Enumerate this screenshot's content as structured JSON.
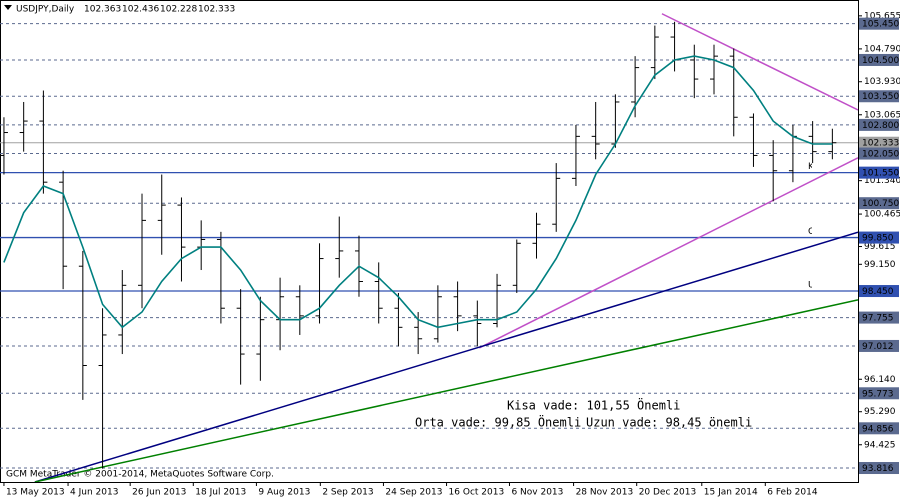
{
  "chart_data": {
    "type": "ohlc",
    "title": "USDJPY,Daily",
    "header_prices": [
      102.363,
      102.436,
      102.228,
      102.333
    ],
    "copyright": "GCM MetaTrader © 2001-2014, MetaQuotes Software Corp.",
    "ylim": [
      93.45,
      106.07
    ],
    "xlim": [
      -0.2,
      43.3
    ],
    "yticks": [
      105.655,
      {
        "value": 104.79,
        "label": "104.790"
      },
      {
        "value": 103.93,
        "label": "103.930"
      },
      103.065,
      {
        "value": 101.34,
        "label": "101.340"
      },
      100.465,
      99.615,
      {
        "value": 99.15,
        "label": "99.150"
      },
      {
        "value": 96.14,
        "label": "96.140"
      },
      {
        "value": 95.29,
        "label": "95.290"
      },
      94.425
    ],
    "xticks": [
      {
        "value": 0,
        "label": "13 May 2013"
      },
      {
        "value": 3.25,
        "label": "4 Jun 2013"
      },
      {
        "value": 6.4,
        "label": "26 Jun 2013"
      },
      {
        "value": 9.6,
        "label": "18 Jul 2013"
      },
      {
        "value": 12.8,
        "label": "9 Aug 2013"
      },
      {
        "value": 16.04,
        "label": "2 Sep 2013"
      },
      {
        "value": 19.24,
        "label": "24 Sep 2013"
      },
      {
        "value": 22.44,
        "label": "16 Oct 2013"
      },
      {
        "value": 25.63,
        "label": "6 Nov 2013"
      },
      {
        "value": 28.88,
        "label": "28 Nov 2013"
      },
      {
        "value": 32.08,
        "label": "20 Dec 2013"
      },
      {
        "value": 35.38,
        "label": "15 Jan 2014"
      },
      {
        "value": 38.6,
        "label": "6 Feb 2014"
      }
    ],
    "color": "#000000",
    "open": [
      102.0,
      102.6,
      102.9,
      101.3,
      99.1,
      96.5,
      97.3,
      98.6,
      100.3,
      100.7,
      99.6,
      99.8,
      98.0,
      96.8,
      97.7,
      98.3,
      97.8,
      99.3,
      99.5,
      98.7,
      98.0,
      97.5,
      97.2,
      98.3,
      97.8,
      97.6,
      98.6,
      99.7,
      100.2,
      101.4,
      102.5,
      102.3,
      103.4,
      104.3,
      105.1,
      104.5,
      104.0,
      104.6,
      103.0,
      102.0,
      101.6,
      102.5,
      102.1
    ],
    "high": [
      103.0,
      103.4,
      103.7,
      101.6,
      99.5,
      98.0,
      99.0,
      101.0,
      101.5,
      100.9,
      100.3,
      100.0,
      98.5,
      98.3,
      98.8,
      98.6,
      99.7,
      100.4,
      99.9,
      99.2,
      98.4,
      97.9,
      98.6,
      98.7,
      98.2,
      98.9,
      99.8,
      100.5,
      101.8,
      102.8,
      103.4,
      103.6,
      104.6,
      105.4,
      105.5,
      104.9,
      104.9,
      104.8,
      103.1,
      102.4,
      102.8,
      102.9,
      102.7
    ],
    "low": [
      101.5,
      102.1,
      101.0,
      98.5,
      95.6,
      93.8,
      96.8,
      98.0,
      99.4,
      98.7,
      99.0,
      97.6,
      96.0,
      96.1,
      96.9,
      97.3,
      97.6,
      98.8,
      98.3,
      97.6,
      97.0,
      96.8,
      97.1,
      97.4,
      97.0,
      97.5,
      98.4,
      99.3,
      100.0,
      101.2,
      101.9,
      102.2,
      103.0,
      104.0,
      104.2,
      103.5,
      103.6,
      102.5,
      101.7,
      100.8,
      101.3,
      101.8,
      101.9
    ],
    "close": [
      102.6,
      102.9,
      101.3,
      99.1,
      96.5,
      97.3,
      98.6,
      100.3,
      100.7,
      99.6,
      99.8,
      98.0,
      96.8,
      97.7,
      98.3,
      97.8,
      99.3,
      99.5,
      98.7,
      98.0,
      97.5,
      97.2,
      98.3,
      97.8,
      97.6,
      98.6,
      99.7,
      100.2,
      101.4,
      102.5,
      102.3,
      103.4,
      104.3,
      105.1,
      104.5,
      104.0,
      104.6,
      103.0,
      102.0,
      101.6,
      102.5,
      102.1,
      102.333
    ],
    "ma": {
      "color": "#008080",
      "values": [
        99.2,
        100.5,
        101.2,
        101.0,
        99.6,
        98.1,
        97.5,
        97.9,
        98.7,
        99.3,
        99.6,
        99.6,
        99.0,
        98.2,
        97.7,
        97.7,
        98.0,
        98.6,
        99.1,
        98.8,
        98.3,
        97.7,
        97.5,
        97.6,
        97.7,
        97.7,
        97.9,
        98.5,
        99.3,
        100.3,
        101.5,
        102.3,
        103.3,
        104.1,
        104.5,
        104.6,
        104.5,
        104.3,
        103.7,
        102.9,
        102.5,
        102.3,
        102.3
      ]
    },
    "levels": [
      {
        "value": 105.45,
        "label": "105.450",
        "color": "#5b6a8f",
        "style": "dashed"
      },
      {
        "value": 104.5,
        "label": "104.500",
        "color": "#5b6a8f",
        "style": "dashed"
      },
      {
        "value": 103.55,
        "label": "103.550",
        "color": "#5b6a8f",
        "style": "dashed"
      },
      {
        "value": 102.8,
        "label": "102.800",
        "color": "#5b6a8f",
        "style": "dashed"
      },
      {
        "value": 102.333,
        "color": "#a0a0a0",
        "style": "solid"
      },
      {
        "value": 102.05,
        "label": "102.050",
        "color": "#5b6a8f",
        "style": "dashed"
      },
      {
        "value": 101.55,
        "label": "101.550",
        "color": "#3050b0",
        "style": "solid",
        "name": "Kisa V"
      },
      {
        "value": 100.75,
        "label": "100.750",
        "color": "#5b6a8f",
        "style": "dashed"
      },
      {
        "value": 99.85,
        "label": "99.850",
        "color": "#3050b0",
        "style": "solid",
        "name": "Orta Vade"
      },
      {
        "value": 98.45,
        "label": "98.450",
        "color": "#3050b0",
        "style": "solid",
        "name": "Uzun V"
      },
      {
        "value": 97.755,
        "color": "#5b6a8f",
        "style": "dashed"
      },
      {
        "value": 97.012,
        "color": "#5b6a8f",
        "style": "dashed"
      },
      {
        "value": 95.773,
        "color": "#5b6a8f",
        "style": "dashed"
      },
      {
        "value": 94.856,
        "color": "#5b6a8f",
        "style": "dashed"
      },
      {
        "value": 93.816,
        "color": "#5b6a8f",
        "style": "dashed"
      }
    ],
    "trendlines": [
      {
        "color": "#c050c8",
        "start": [
          24.1,
          96.96
        ],
        "end": [
          43.3,
          101.94
        ]
      },
      {
        "color": "#c050c8",
        "start": [
          33.36,
          105.71
        ],
        "end": [
          43.3,
          103.19
        ]
      },
      {
        "color": "#000080",
        "start": [
          1.57,
          93.45
        ],
        "end": [
          43.3,
          99.99
        ]
      },
      {
        "color": "#008000",
        "start": [
          1.57,
          93.45
        ],
        "end": [
          43.3,
          98.22
        ]
      }
    ],
    "annotations": [
      {
        "text": "Kisa vade: 101,55 Önemli",
        "color": "#20a020"
      },
      {
        "text": "Orta vade: 99,85 Önemli",
        "color": "#000080"
      },
      {
        "text": "Uzun vade: 98,45 önemli",
        "color": "#e00000"
      }
    ]
  }
}
